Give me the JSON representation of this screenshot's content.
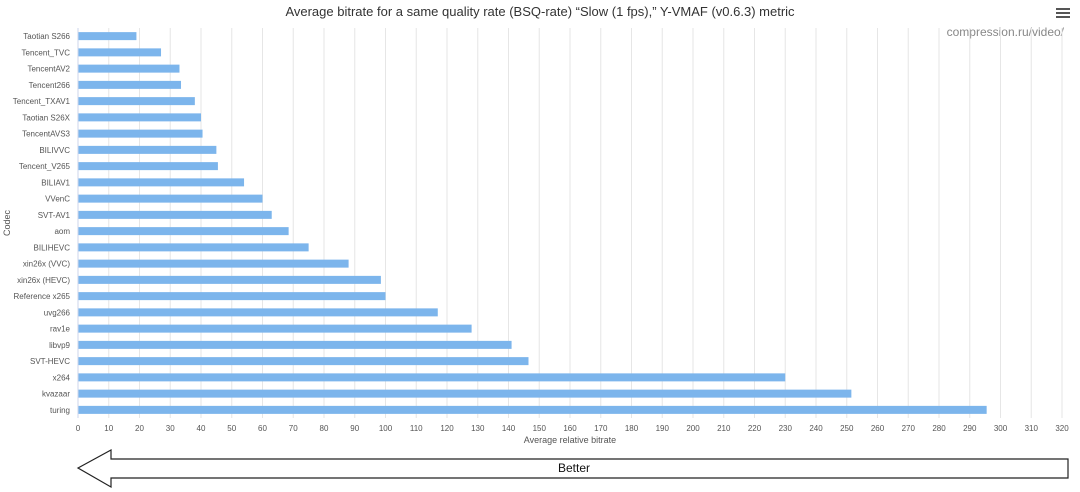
{
  "chart_data": {
    "type": "bar",
    "orientation": "horizontal",
    "title": "Average bitrate for a same quality rate (BSQ-rate) “Slow (1 fps),” Y-VMAF (v0.6.3) metric",
    "watermark": "compression.ru/video/",
    "xlabel": "Average relative bitrate",
    "ylabel": "Codec",
    "xlim": [
      0,
      320
    ],
    "xticks": [
      0,
      10,
      20,
      30,
      40,
      50,
      60,
      70,
      80,
      90,
      100,
      110,
      120,
      130,
      140,
      150,
      160,
      170,
      180,
      190,
      200,
      210,
      220,
      230,
      240,
      250,
      260,
      270,
      280,
      290,
      300,
      310,
      320
    ],
    "grid": "vertical",
    "bar_color": "#7cb5ec",
    "categories": [
      "Taotian S266",
      "Tencent_TVC",
      "TencentAV2",
      "Tencent266",
      "Tencent_TXAV1",
      "Taotian S26X",
      "TencentAVS3",
      "BILIVVC",
      "Tencent_V265",
      "BILIAV1",
      "VVenC",
      "SVT-AV1",
      "aom",
      "BILIHEVC",
      "xin26x (VVC)",
      "xin26x (HEVC)",
      "Reference x265",
      "uvg266",
      "rav1e",
      "libvp9",
      "SVT-HEVC",
      "x264",
      "kvazaar",
      "turing"
    ],
    "values": [
      19,
      27,
      33,
      33.5,
      38,
      40,
      40.5,
      45,
      45.5,
      54,
      60,
      63,
      68.5,
      75,
      88,
      98.5,
      100,
      117,
      128,
      141,
      146.5,
      230,
      251.5,
      295.5
    ]
  },
  "annotation": {
    "arrow_label": "Better"
  },
  "colors": {
    "bar": "#7cb5ec",
    "grid": "#e6e6e6",
    "axis_text": "#555555"
  }
}
